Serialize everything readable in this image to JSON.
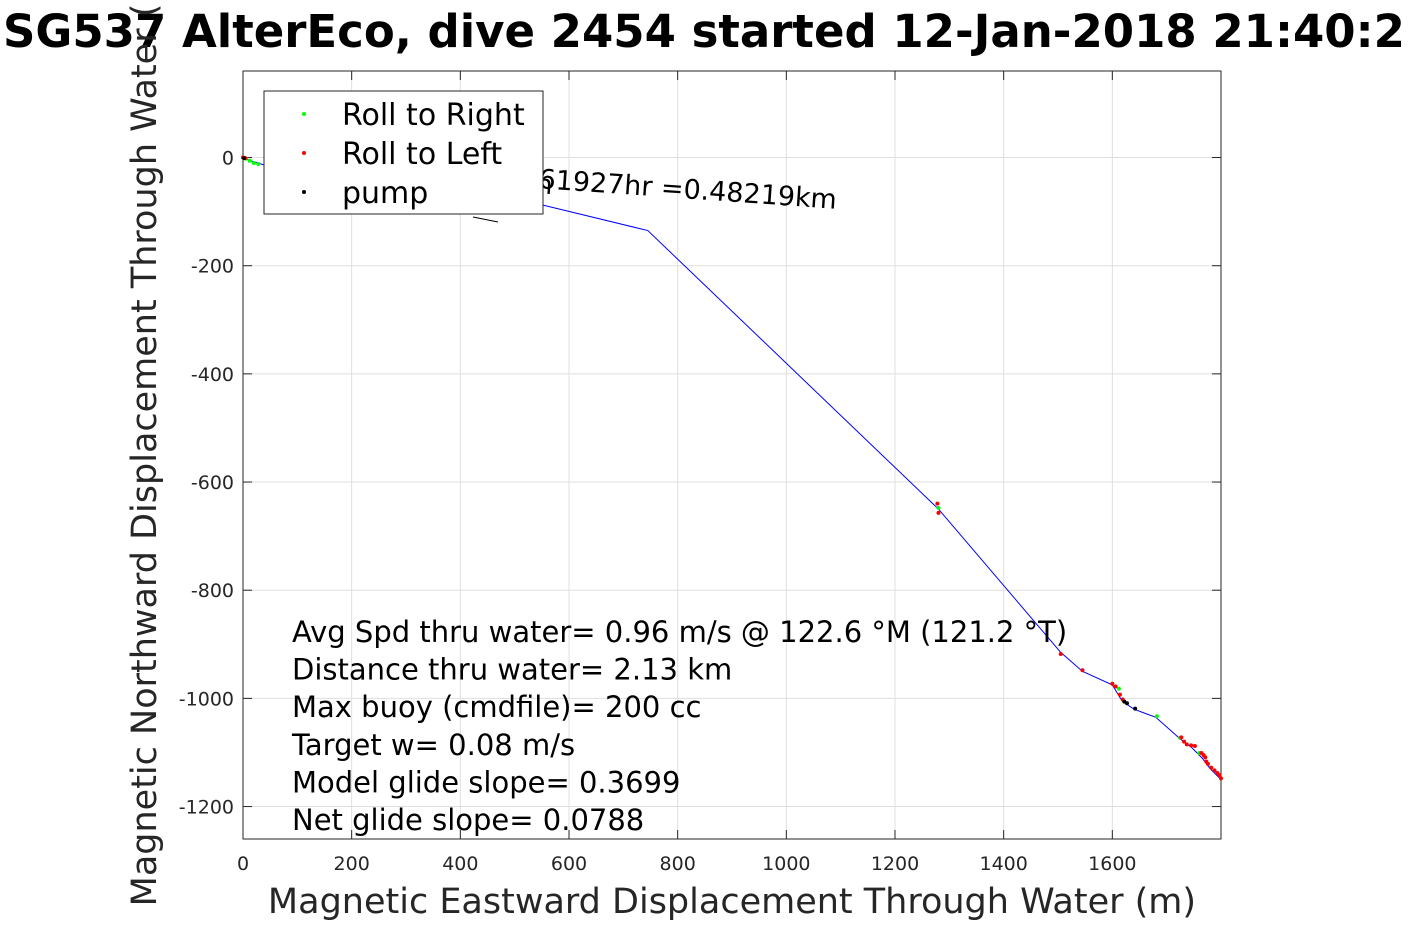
{
  "chart_data": {
    "type": "line",
    "title": "SG537 AlterEco, dive 2454 started 12-Jan-2018 21:40:2",
    "xlabel": "Magnetic Eastward Displacement Through Water (m)",
    "ylabel": "Magnetic Northward Displacement Through Water (",
    "xlim": [
      0,
      1800
    ],
    "ylim": [
      -1260,
      160
    ],
    "xticks": [
      0,
      200,
      400,
      600,
      800,
      1000,
      1200,
      1400,
      1600
    ],
    "yticks": [
      0,
      -200,
      -400,
      -600,
      -800,
      -1000,
      -1200
    ],
    "xtick_labels": [
      "0",
      "200",
      "400",
      "600",
      "800",
      "1000",
      "1200",
      "1400",
      "1600"
    ],
    "ytick_labels": [
      "0",
      "-200",
      "-400",
      "-600",
      "-800",
      "-1000",
      "-1200"
    ],
    "grid": true,
    "legend_position": "top-left",
    "track": {
      "name": "track",
      "color": "#0000ff",
      "x": [
        0,
        20,
        60,
        140,
        300,
        420,
        540,
        745,
        1280,
        1505,
        1545,
        1600,
        1615,
        1625,
        1640,
        1680,
        1725,
        1745,
        1765,
        1780,
        1800
      ],
      "y": [
        0,
        -8,
        -20,
        -40,
        -60,
        -75,
        -85,
        -135,
        -650,
        -915,
        -950,
        -975,
        -1000,
        -1010,
        -1020,
        -1035,
        -1075,
        -1090,
        -1110,
        -1130,
        -1150
      ]
    },
    "series": [
      {
        "name": "Roll to Right",
        "color": "#00ff00",
        "x": [
          5,
          12,
          20,
          28,
          1280,
          1612,
          1682,
          1725,
          1760
        ],
        "y": [
          -2,
          -6,
          -10,
          -12,
          -648,
          -982,
          -1033,
          -1073,
          -1101
        ]
      },
      {
        "name": "Roll to Left",
        "color": "#ff0000",
        "x": [
          0,
          4,
          1278,
          1280,
          1505,
          1545,
          1600,
          1606,
          1614,
          1619,
          1727,
          1732,
          1737,
          1745,
          1752,
          1764,
          1768,
          1771,
          1773,
          1776,
          1782,
          1788,
          1793,
          1797,
          1800
        ],
        "y": [
          0,
          -1,
          -640,
          -657,
          -918,
          -948,
          -973,
          -978,
          -993,
          -1002,
          -1072,
          -1080,
          -1085,
          -1087,
          -1088,
          -1101,
          -1105,
          -1109,
          -1117,
          -1121,
          -1128,
          -1133,
          -1138,
          -1142,
          -1148
        ]
      },
      {
        "name": "pump",
        "color": "#000000",
        "x": [
          2,
          1622,
          1627,
          1642
        ],
        "y": [
          -1,
          -1006,
          -1009,
          -1019
        ]
      }
    ],
    "annotations": [
      "Avg Spd thru water=  0.96 m/s @ 122.6 °M (121.2 °T)",
      "Distance thru water=  2.13 km",
      "Max buoy (cmdfile)= 200 cc",
      "Target w= 0.08 m/s",
      "Model glide slope= 0.3699",
      "Net glide slope= 0.0788"
    ],
    "slanted_note": "61927hr =0.48219km",
    "slanted_note_prefix": "h"
  },
  "colors": {
    "axes": "#262626",
    "grid": "#dfdfdf",
    "track": "#0000ff"
  }
}
